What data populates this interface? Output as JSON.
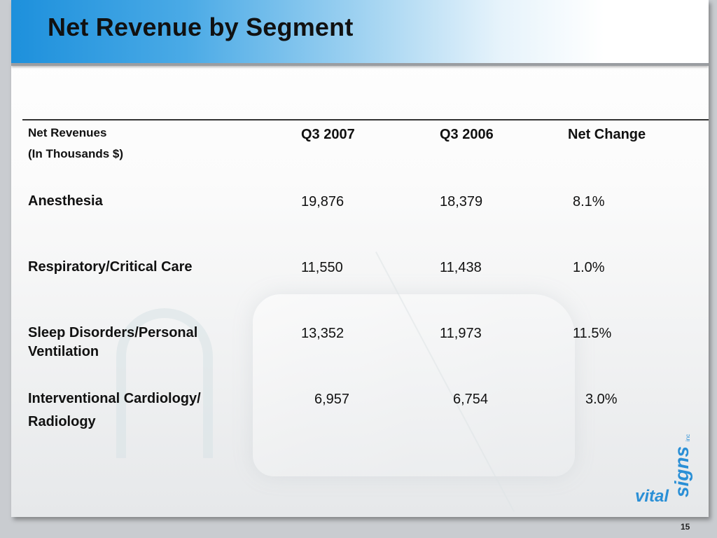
{
  "title": "Net Revenue by Segment",
  "table": {
    "header_line1": "Net Revenues",
    "header_line2": "(In Thousands $)",
    "columns": [
      "Q3 2007",
      "Q3 2006",
      "Net Change"
    ],
    "rows": [
      {
        "label_line1": "Anesthesia",
        "label_line2": "",
        "q3_2007": "19,876",
        "q3_2006": "18,379",
        "net_change": "8.1%"
      },
      {
        "label_line1": "Respiratory/Critical Care",
        "label_line2": "",
        "q3_2007": "11,550",
        "q3_2006": "11,438",
        "net_change": "1.0%"
      },
      {
        "label_line1": "Sleep Disorders/Personal",
        "label_line2": "Ventilation",
        "q3_2007": "13,352",
        "q3_2006": "11,973",
        "net_change": "11.5%"
      },
      {
        "label_line1": "Interventional Cardiology/",
        "label_line2": "Radiology",
        "q3_2007": "6,957",
        "q3_2006": "6,754",
        "net_change": "3.0%"
      }
    ]
  },
  "logo": {
    "word1": "vital",
    "word2": "signs",
    "suffix": "inc"
  },
  "page_number": "15",
  "colors": {
    "accent": "#1d90dc",
    "logo": "#2a8fd6"
  }
}
